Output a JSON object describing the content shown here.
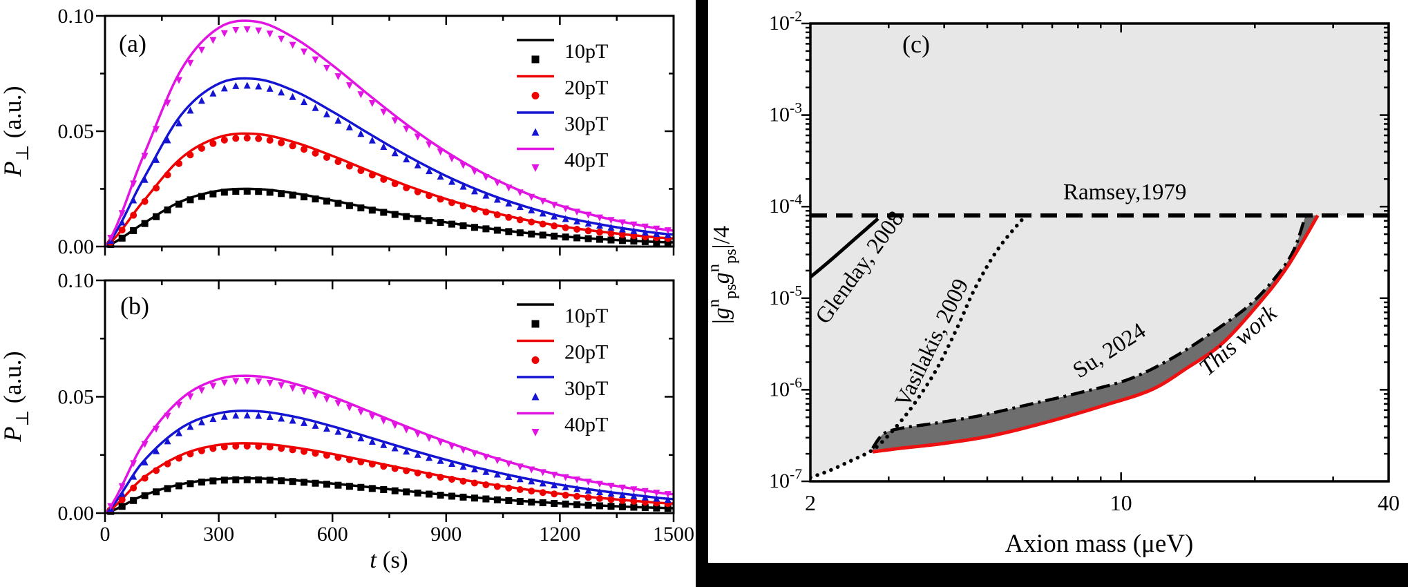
{
  "figure": {
    "description": "Three-panel physics figure: transverse polarization transients (a,b) and axion exclusion plot (c)",
    "colors": {
      "background": "#ffffff",
      "divider_bar": "#000000",
      "light_shade": "#e7e7e7",
      "dark_shade": "#6e6e6e",
      "accent_red": "#ee1111",
      "accent_blue": "#1414d2",
      "accent_magenta": "#e214e2"
    }
  },
  "chart_data": [
    {
      "id": "a",
      "type": "line",
      "panel_label": "(a)",
      "ylabel_rich": [
        [
          "P",
          "i"
        ],
        [
          "⊥",
          "sub"
        ],
        [
          " (a.u.)",
          ""
        ]
      ],
      "xlabel_rich": null,
      "xlim": [
        0,
        1500
      ],
      "ylim": [
        0,
        0.1
      ],
      "xticks_major": [
        0,
        300,
        600,
        900,
        1200,
        1500
      ],
      "xticks_minor": [
        150,
        450,
        750,
        1050,
        1350
      ],
      "show_xtick_labels": false,
      "yticks_major": [
        {
          "v": 0,
          "label": "0.00"
        },
        {
          "v": 0.05,
          "label": "0.05"
        },
        {
          "v": 0.1,
          "label": "0.10"
        }
      ],
      "yticks_minor": [
        0.025,
        0.075
      ],
      "t_step": 100,
      "legend_position": "upper right",
      "marker_scale": 0.96,
      "marker_t_start": 15,
      "marker_t_step": 30,
      "series": [
        {
          "name": "10pT",
          "color": "#000000",
          "marker": "square",
          "values": [
            0,
            0.0099,
            0.0195,
            0.0242,
            0.0249,
            0.0231,
            0.02,
            0.0166,
            0.0134,
            0.0105,
            0.0081,
            0.0061,
            0.0045,
            0.0033,
            0.0024,
            0.0018
          ]
        },
        {
          "name": "20pT",
          "color": "#ee0000",
          "marker": "circle",
          "values": [
            0,
            0.0194,
            0.0382,
            0.0474,
            0.0488,
            0.0452,
            0.0393,
            0.0326,
            0.0262,
            0.0206,
            0.0158,
            0.0119,
            0.0089,
            0.0066,
            0.0048,
            0.0035
          ]
        },
        {
          "name": "30pT",
          "color": "#1414d2",
          "marker": "triangle-up",
          "values": [
            0,
            0.0289,
            0.0569,
            0.0706,
            0.0726,
            0.0674,
            0.0585,
            0.0486,
            0.0391,
            0.0306,
            0.0235,
            0.0178,
            0.0132,
            0.0098,
            0.0071,
            0.0052
          ]
        },
        {
          "name": "40pT",
          "color": "#e214e2",
          "marker": "triangle-down",
          "values": [
            0,
            0.0388,
            0.0764,
            0.0948,
            0.0975,
            0.0904,
            0.0786,
            0.0652,
            0.0524,
            0.0411,
            0.0316,
            0.0239,
            0.0178,
            0.0131,
            0.0096,
            0.0069
          ]
        }
      ]
    },
    {
      "id": "b",
      "type": "line",
      "panel_label": "(b)",
      "ylabel_rich": [
        [
          "P",
          "i"
        ],
        [
          "⊥",
          "sub"
        ],
        [
          " (a.u.)",
          ""
        ]
      ],
      "xlabel_rich": [
        [
          "t",
          "i"
        ],
        [
          " (s)",
          ""
        ]
      ],
      "xlim": [
        0,
        1500
      ],
      "ylim": [
        0,
        0.1
      ],
      "xticks_major": [
        0,
        300,
        600,
        900,
        1200,
        1500
      ],
      "xticks_minor": [
        150,
        450,
        750,
        1050,
        1350
      ],
      "show_xtick_labels": true,
      "yticks_major": [
        {
          "v": 0,
          "label": "0.00"
        },
        {
          "v": 0.05,
          "label": "0.05"
        },
        {
          "v": 0.1,
          "label": "0.10"
        }
      ],
      "yticks_minor": [
        0.025,
        0.075
      ],
      "t_step": 100,
      "legend_position": "upper right",
      "marker_scale": 0.96,
      "marker_t_start": 15,
      "marker_t_step": 30,
      "series": [
        {
          "name": "10pT",
          "color": "#000000",
          "marker": "square",
          "values": [
            0,
            0.0075,
            0.0124,
            0.0146,
            0.0149,
            0.0141,
            0.0127,
            0.0111,
            0.0094,
            0.0078,
            0.0064,
            0.0052,
            0.0042,
            0.0033,
            0.0026,
            0.0021
          ]
        },
        {
          "name": "20pT",
          "color": "#ee0000",
          "marker": "circle",
          "values": [
            0,
            0.015,
            0.0249,
            0.0293,
            0.0299,
            0.0282,
            0.0254,
            0.0221,
            0.0188,
            0.0156,
            0.0128,
            0.0104,
            0.0083,
            0.0066,
            0.0052,
            0.0041
          ]
        },
        {
          "name": "30pT",
          "color": "#1414d2",
          "marker": "triangle-up",
          "values": [
            0,
            0.022,
            0.0365,
            0.0429,
            0.0438,
            0.0414,
            0.0373,
            0.0324,
            0.0275,
            0.0229,
            0.0188,
            0.0152,
            0.0122,
            0.0097,
            0.0077,
            0.006
          ]
        },
        {
          "name": "40pT",
          "color": "#e214e2",
          "marker": "triangle-down",
          "values": [
            0,
            0.0295,
            0.049,
            0.0576,
            0.0588,
            0.0556,
            0.05,
            0.0435,
            0.0369,
            0.0307,
            0.0252,
            0.0204,
            0.0164,
            0.0131,
            0.0103,
            0.0081
          ]
        }
      ]
    },
    {
      "id": "c",
      "type": "line-log",
      "panel_label": "(c)",
      "xlabel": "Axion mass (μeV)",
      "ylabel_rich": [
        [
          "|",
          ""
        ],
        [
          "g",
          "i"
        ],
        [
          "n",
          "sup"
        ],
        [
          "ps",
          "sub"
        ],
        [
          "g",
          "i"
        ],
        [
          "n",
          "sup"
        ],
        [
          "ps",
          "sub"
        ],
        [
          "|/4",
          ""
        ]
      ],
      "xscale": "log",
      "yscale": "log",
      "xlim": [
        2,
        40
      ],
      "ylim": [
        1e-07,
        0.01
      ],
      "xticks": [
        {
          "v": 2,
          "label": "2"
        },
        {
          "v": 10,
          "label": "10"
        },
        {
          "v": 40,
          "label": "40"
        }
      ],
      "xticks_minor": [
        3,
        4,
        5,
        6,
        7,
        8,
        9,
        20,
        30
      ],
      "ytick_exponents": [
        -2,
        -3,
        -4,
        -5,
        -6,
        -7
      ],
      "shade_light": "#e7e7e7",
      "shade_dark": "#6e6e6e",
      "series": [
        {
          "name": "Ramsey,1979",
          "style": "dashed",
          "color": "#000000",
          "width": 6,
          "points": [
            [
              2,
              8e-05
            ],
            [
              40,
              8e-05
            ]
          ]
        },
        {
          "name": "Glenday, 2008",
          "style": "solid",
          "color": "#000000",
          "width": 5,
          "points": [
            [
              2,
              1.7e-05
            ],
            [
              2.2,
              2.5e-05
            ],
            [
              2.5,
              4.3e-05
            ],
            [
              2.84,
              7.4e-05
            ]
          ]
        },
        {
          "name": "Vasilakis, 2009",
          "style": "dotted",
          "color": "#000000",
          "width": 5.5,
          "points": [
            [
              2,
              1.1e-07
            ],
            [
              2.2,
              1.3e-07
            ],
            [
              2.45,
              1.65e-07
            ],
            [
              2.76,
              2.2e-07
            ],
            [
              3,
              3.2e-07
            ],
            [
              3.3,
              5.5e-07
            ],
            [
              3.6,
              1e-06
            ],
            [
              3.9,
              1.9e-06
            ],
            [
              4.3,
              5e-06
            ],
            [
              4.7,
              1.3e-05
            ],
            [
              5.3,
              3.5e-05
            ],
            [
              6.1,
              8e-05
            ]
          ]
        },
        {
          "name": "Su, 2024",
          "style": "dashdot",
          "color": "#000000",
          "width": 4.5,
          "points": [
            [
              2.76,
              2.3e-07
            ],
            [
              2.92,
              3.3e-07
            ],
            [
              3.2,
              3.8e-07
            ],
            [
              3.8,
              4.3e-07
            ],
            [
              4.8,
              5.2e-07
            ],
            [
              6.2,
              6.9e-07
            ],
            [
              8,
              9.2e-07
            ],
            [
              10.4,
              1.3e-06
            ],
            [
              13,
              2.2e-06
            ],
            [
              16,
              4.2e-06
            ],
            [
              19.5,
              8.5e-06
            ],
            [
              22.5,
              1.8e-05
            ],
            [
              24.5,
              3.4e-05
            ],
            [
              26,
              8e-05
            ]
          ]
        },
        {
          "name": "This work",
          "style": "solid",
          "color": "#ee1111",
          "width": 5,
          "points": [
            [
              2.76,
              2.1e-07
            ],
            [
              3.2,
              2.3e-07
            ],
            [
              4,
              2.6e-07
            ],
            [
              5.2,
              3.2e-07
            ],
            [
              7,
              4.6e-07
            ],
            [
              9.2,
              6.8e-07
            ],
            [
              11.7,
              1e-06
            ],
            [
              14,
              1.7e-06
            ],
            [
              17,
              3.3e-06
            ],
            [
              20.9,
              1e-05
            ],
            [
              23.5,
              2.1e-05
            ],
            [
              25.8,
              4.4e-05
            ],
            [
              27.7,
              8e-05
            ]
          ]
        }
      ],
      "regions": [
        {
          "name": "excluded-region",
          "fill": "#e7e7e7"
        },
        {
          "name": "su-thiswork-band",
          "fill": "#6e6e6e"
        }
      ],
      "annotations": [
        {
          "text": "Ramsey,1979",
          "x": 10.2,
          "y": 0.00012,
          "rot": 0,
          "size": 33,
          "color": "#000000",
          "italic": false
        },
        {
          "text": "Glenday, 2008",
          "x": 2.66,
          "y": 1.95e-05,
          "rot": -54,
          "size": 33,
          "color": "#000000",
          "italic": false
        },
        {
          "text": "Vasilakis, 2009",
          "x": 3.88,
          "y": 3e-06,
          "rot": -64,
          "size": 33,
          "color": "#000000",
          "italic": false
        },
        {
          "text": "Su, 2024",
          "x": 9.6,
          "y": 2.3e-06,
          "rot": -33,
          "size": 33,
          "color": "#000000",
          "italic": false
        },
        {
          "text": "This work",
          "x": 18.8,
          "y": 3e-06,
          "rot": -41,
          "size": 34,
          "color": "#ee1111",
          "italic": true
        }
      ]
    }
  ]
}
